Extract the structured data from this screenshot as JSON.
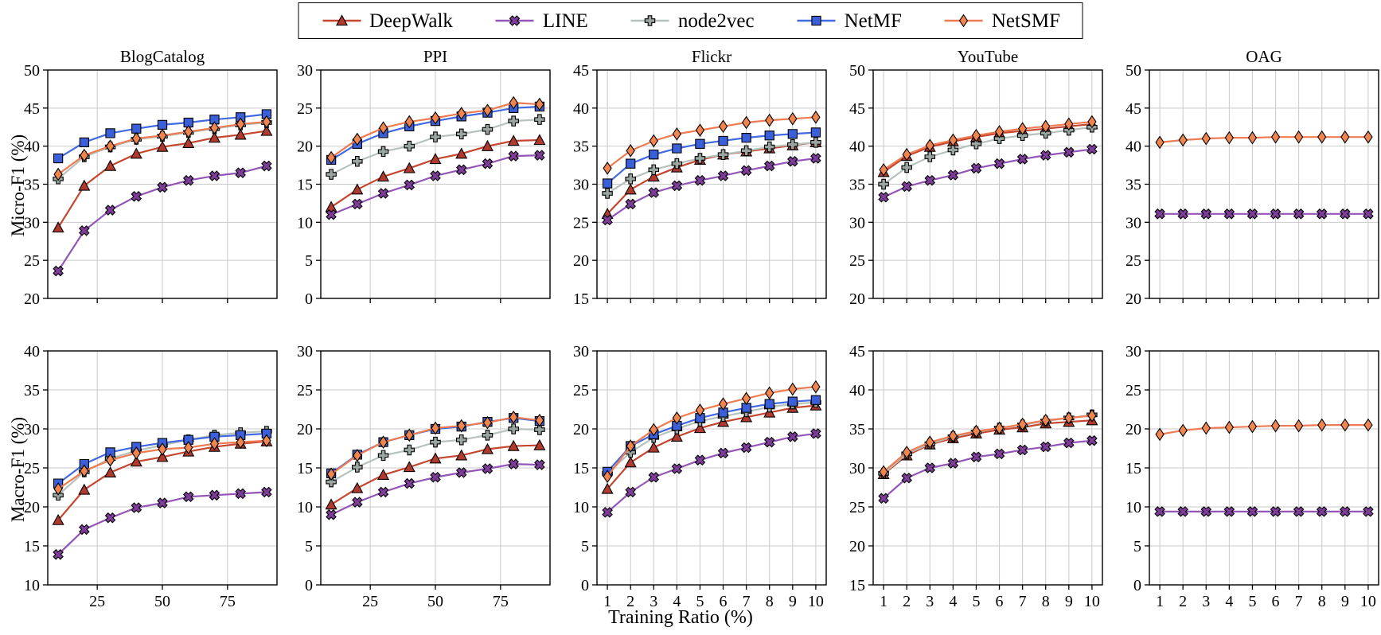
{
  "legend": {
    "items": [
      {
        "method": "DeepWalk",
        "label": "DeepWalk"
      },
      {
        "method": "LINE",
        "label": "LINE"
      },
      {
        "method": "node2vec",
        "label": "node2vec"
      },
      {
        "method": "NetMF",
        "label": "NetMF"
      },
      {
        "method": "NetSMF",
        "label": "NetSMF"
      }
    ]
  },
  "methods": {
    "DeepWalk": {
      "marker": "triangle",
      "line_color": "#c5462f",
      "fill_color": "#b03a2e"
    },
    "LINE": {
      "marker": "xcross",
      "line_color": "#9455b8",
      "fill_color": "#7d3c98"
    },
    "node2vec": {
      "marker": "plus",
      "line_color": "#b7c2bd",
      "fill_color": "#9aa5a1"
    },
    "NetMF": {
      "marker": "square",
      "line_color": "#4169e1",
      "fill_color": "#3a5fd8"
    },
    "NetSMF": {
      "marker": "diamond",
      "line_color": "#ee7b51",
      "fill_color": "#f0854f"
    }
  },
  "axis": {
    "xlabel": "Training Ratio (%)",
    "ylabel_row1": "Micro-F1 (%)",
    "ylabel_row2": "Macro-F1 (%)"
  },
  "chart_data": [
    {
      "id": "blogcatalog-micro",
      "type": "line",
      "title": "BlogCatalog",
      "row": 0,
      "col": 0,
      "ylim": [
        20,
        50
      ],
      "ytick_step": 5,
      "xlim": [
        6,
        94
      ],
      "xticks": [
        25,
        50,
        75
      ],
      "show_xtick_labels": false,
      "x": [
        10,
        20,
        30,
        40,
        50,
        60,
        70,
        80,
        90
      ],
      "series": [
        {
          "name": "DeepWalk",
          "values": [
            29.3,
            34.8,
            37.4,
            39.0,
            39.9,
            40.4,
            41.1,
            41.5,
            42.0
          ]
        },
        {
          "name": "LINE",
          "values": [
            23.6,
            28.9,
            31.6,
            33.4,
            34.6,
            35.5,
            36.1,
            36.5,
            37.4
          ]
        },
        {
          "name": "node2vec",
          "values": [
            35.7,
            38.6,
            39.9,
            40.9,
            41.3,
            41.8,
            42.3,
            42.8,
            43.1
          ]
        },
        {
          "name": "NetMF",
          "values": [
            38.4,
            40.5,
            41.7,
            42.3,
            42.8,
            43.1,
            43.5,
            43.8,
            44.2
          ]
        },
        {
          "name": "NetSMF",
          "values": [
            36.3,
            38.8,
            40.0,
            41.0,
            41.4,
            41.9,
            42.4,
            42.9,
            43.2
          ]
        }
      ]
    },
    {
      "id": "ppi-micro",
      "type": "line",
      "title": "PPI",
      "row": 0,
      "col": 1,
      "ylim": [
        0,
        30
      ],
      "ytick_step": 5,
      "xlim": [
        6,
        94
      ],
      "xticks": [
        25,
        50,
        75
      ],
      "show_xtick_labels": false,
      "x": [
        10,
        20,
        30,
        40,
        50,
        60,
        70,
        80,
        90
      ],
      "series": [
        {
          "name": "DeepWalk",
          "values": [
            12.0,
            14.3,
            16.0,
            17.1,
            18.3,
            19.0,
            20.0,
            20.7,
            20.8
          ]
        },
        {
          "name": "LINE",
          "values": [
            11.0,
            12.4,
            13.8,
            14.9,
            16.1,
            16.9,
            17.7,
            18.7,
            18.8
          ]
        },
        {
          "name": "node2vec",
          "values": [
            16.3,
            18.0,
            19.3,
            20.0,
            21.2,
            21.6,
            22.2,
            23.3,
            23.5
          ]
        },
        {
          "name": "NetMF",
          "values": [
            18.2,
            20.3,
            21.7,
            22.6,
            23.3,
            23.9,
            24.4,
            25.0,
            25.2
          ]
        },
        {
          "name": "NetSMF",
          "values": [
            18.5,
            20.9,
            22.4,
            23.2,
            23.7,
            24.3,
            24.7,
            25.7,
            25.5
          ]
        }
      ]
    },
    {
      "id": "flickr-micro",
      "type": "line",
      "title": "Flickr",
      "row": 0,
      "col": 2,
      "ylim": [
        15,
        45
      ],
      "ytick_step": 5,
      "xlim": [
        0.55,
        10.45
      ],
      "xticks": [
        1,
        2,
        3,
        4,
        5,
        6,
        7,
        8,
        9,
        10
      ],
      "show_xtick_labels": false,
      "x": [
        1,
        2,
        3,
        4,
        5,
        6,
        7,
        8,
        9,
        10
      ],
      "series": [
        {
          "name": "DeepWalk",
          "values": [
            26.1,
            29.3,
            31.0,
            32.2,
            33.2,
            33.9,
            34.3,
            34.7,
            35.1,
            35.5
          ]
        },
        {
          "name": "LINE",
          "values": [
            25.3,
            27.4,
            28.9,
            29.8,
            30.5,
            31.1,
            31.8,
            32.4,
            33.0,
            33.4
          ]
        },
        {
          "name": "node2vec",
          "values": [
            28.8,
            30.7,
            31.9,
            32.7,
            33.4,
            33.9,
            34.4,
            34.9,
            35.2,
            35.5
          ]
        },
        {
          "name": "NetMF",
          "values": [
            30.1,
            32.7,
            33.9,
            34.7,
            35.3,
            35.7,
            36.1,
            36.4,
            36.6,
            36.8
          ]
        },
        {
          "name": "NetSMF",
          "values": [
            32.1,
            34.4,
            35.7,
            36.6,
            37.1,
            37.6,
            38.1,
            38.4,
            38.6,
            38.8
          ]
        }
      ]
    },
    {
      "id": "youtube-micro",
      "type": "line",
      "title": "YouTube",
      "row": 0,
      "col": 3,
      "ylim": [
        20,
        50
      ],
      "ytick_step": 5,
      "xlim": [
        0.55,
        10.45
      ],
      "xticks": [
        1,
        2,
        3,
        4,
        5,
        6,
        7,
        8,
        9,
        10
      ],
      "show_xtick_labels": false,
      "x": [
        1,
        2,
        3,
        4,
        5,
        6,
        7,
        8,
        9,
        10
      ],
      "series": [
        {
          "name": "DeepWalk",
          "values": [
            36.6,
            38.7,
            39.9,
            40.6,
            41.2,
            41.7,
            42.0,
            42.3,
            42.6,
            42.9
          ]
        },
        {
          "name": "LINE",
          "values": [
            33.3,
            34.7,
            35.5,
            36.2,
            37.1,
            37.7,
            38.3,
            38.8,
            39.2,
            39.6
          ]
        },
        {
          "name": "node2vec",
          "values": [
            35.0,
            37.2,
            38.6,
            39.5,
            40.3,
            41.0,
            41.4,
            41.7,
            42.1,
            42.5
          ]
        },
        {
          "name": "NetSMF",
          "values": [
            36.9,
            38.9,
            40.1,
            40.8,
            41.4,
            41.9,
            42.3,
            42.6,
            42.9,
            43.2
          ]
        }
      ]
    },
    {
      "id": "oag-micro",
      "type": "line",
      "title": "OAG",
      "row": 0,
      "col": 4,
      "ylim": [
        20,
        50
      ],
      "ytick_step": 5,
      "xlim": [
        0.55,
        10.45
      ],
      "xticks": [
        1,
        2,
        3,
        4,
        5,
        6,
        7,
        8,
        9,
        10
      ],
      "show_xtick_labels": false,
      "x": [
        1,
        2,
        3,
        4,
        5,
        6,
        7,
        8,
        9,
        10
      ],
      "series": [
        {
          "name": "LINE",
          "values": [
            31.1,
            31.1,
            31.1,
            31.1,
            31.1,
            31.1,
            31.1,
            31.1,
            31.1,
            31.1
          ]
        },
        {
          "name": "NetSMF",
          "values": [
            40.5,
            40.8,
            41.0,
            41.1,
            41.1,
            41.2,
            41.2,
            41.2,
            41.2,
            41.2
          ]
        }
      ]
    },
    {
      "id": "blogcatalog-macro",
      "type": "line",
      "title": "",
      "row": 1,
      "col": 0,
      "ylim": [
        10,
        40
      ],
      "ytick_step": 5,
      "xlim": [
        6,
        94
      ],
      "xticks": [
        25,
        50,
        75
      ],
      "show_xtick_labels": true,
      "x": [
        10,
        20,
        30,
        40,
        50,
        60,
        70,
        80,
        90
      ],
      "series": [
        {
          "name": "DeepWalk",
          "values": [
            18.3,
            22.2,
            24.4,
            25.8,
            26.4,
            27.1,
            27.7,
            28.1,
            28.4
          ]
        },
        {
          "name": "LINE",
          "values": [
            13.9,
            17.1,
            18.6,
            19.9,
            20.5,
            21.3,
            21.5,
            21.7,
            21.9
          ]
        },
        {
          "name": "node2vec",
          "values": [
            21.5,
            24.5,
            26.2,
            27.2,
            27.9,
            28.6,
            29.2,
            29.5,
            29.7
          ]
        },
        {
          "name": "NetMF",
          "values": [
            23.0,
            25.5,
            27.0,
            27.7,
            28.2,
            28.6,
            29.0,
            29.2,
            29.4
          ]
        },
        {
          "name": "NetSMF",
          "values": [
            22.3,
            24.6,
            26.0,
            26.9,
            27.4,
            27.6,
            28.1,
            28.3,
            28.5
          ]
        }
      ]
    },
    {
      "id": "ppi-macro",
      "type": "line",
      "title": "",
      "row": 1,
      "col": 1,
      "ylim": [
        0,
        30
      ],
      "ytick_step": 5,
      "xlim": [
        6,
        94
      ],
      "xticks": [
        25,
        50,
        75
      ],
      "show_xtick_labels": true,
      "x": [
        10,
        20,
        30,
        40,
        50,
        60,
        70,
        80,
        90
      ],
      "series": [
        {
          "name": "DeepWalk",
          "values": [
            10.3,
            12.4,
            14.1,
            15.1,
            16.2,
            16.6,
            17.4,
            17.8,
            17.9
          ]
        },
        {
          "name": "LINE",
          "values": [
            9.0,
            10.6,
            11.9,
            13.0,
            13.8,
            14.4,
            14.9,
            15.5,
            15.4
          ]
        },
        {
          "name": "node2vec",
          "values": [
            13.2,
            15.1,
            16.6,
            17.3,
            18.3,
            18.6,
            19.2,
            20.0,
            19.9
          ]
        },
        {
          "name": "NetMF",
          "values": [
            14.3,
            16.7,
            18.3,
            19.2,
            20.0,
            20.3,
            20.9,
            21.4,
            21.0
          ]
        },
        {
          "name": "NetSMF",
          "values": [
            14.2,
            16.6,
            18.3,
            19.2,
            20.1,
            20.4,
            20.8,
            21.5,
            21.1
          ]
        }
      ]
    },
    {
      "id": "flickr-macro",
      "type": "line",
      "title": "",
      "row": 1,
      "col": 2,
      "ylim": [
        0,
        30
      ],
      "ytick_step": 5,
      "xlim": [
        0.55,
        10.45
      ],
      "xticks": [
        1,
        2,
        3,
        4,
        5,
        6,
        7,
        8,
        9,
        10
      ],
      "show_xtick_labels": true,
      "x": [
        1,
        2,
        3,
        4,
        5,
        6,
        7,
        8,
        9,
        10
      ],
      "series": [
        {
          "name": "DeepWalk",
          "values": [
            12.3,
            15.7,
            17.6,
            19.0,
            20.1,
            20.9,
            21.5,
            22.1,
            22.7,
            23.0
          ]
        },
        {
          "name": "LINE",
          "values": [
            9.3,
            11.9,
            13.8,
            14.9,
            16.0,
            16.9,
            17.6,
            18.3,
            19.0,
            19.4
          ]
        },
        {
          "name": "node2vec",
          "values": [
            14.3,
            17.0,
            18.9,
            20.0,
            21.0,
            21.6,
            22.2,
            22.8,
            23.2,
            23.4
          ]
        },
        {
          "name": "NetMF",
          "values": [
            14.5,
            17.8,
            19.3,
            20.4,
            21.4,
            22.1,
            22.7,
            23.2,
            23.5,
            23.7
          ]
        },
        {
          "name": "NetSMF",
          "values": [
            13.9,
            17.8,
            19.9,
            21.4,
            22.4,
            23.2,
            23.9,
            24.6,
            25.1,
            25.4
          ]
        }
      ]
    },
    {
      "id": "youtube-macro",
      "type": "line",
      "title": "",
      "row": 1,
      "col": 3,
      "ylim": [
        15,
        45
      ],
      "ytick_step": 5,
      "xlim": [
        0.55,
        10.45
      ],
      "xticks": [
        1,
        2,
        3,
        4,
        5,
        6,
        7,
        8,
        9,
        10
      ],
      "show_xtick_labels": true,
      "x": [
        1,
        2,
        3,
        4,
        5,
        6,
        7,
        8,
        9,
        10
      ],
      "series": [
        {
          "name": "DeepWalk",
          "values": [
            29.2,
            31.6,
            33.0,
            33.8,
            34.4,
            34.9,
            35.2,
            35.7,
            35.9,
            36.1
          ]
        },
        {
          "name": "LINE",
          "values": [
            26.1,
            28.7,
            30.0,
            30.6,
            31.4,
            31.8,
            32.3,
            32.7,
            33.2,
            33.5
          ]
        },
        {
          "name": "node2vec",
          "values": [
            29.3,
            31.8,
            33.1,
            34.0,
            34.6,
            35.1,
            35.5,
            36.0,
            36.4,
            36.8
          ]
        },
        {
          "name": "NetSMF",
          "values": [
            29.5,
            32.0,
            33.3,
            34.1,
            34.7,
            35.1,
            35.6,
            36.1,
            36.4,
            36.7
          ]
        }
      ]
    },
    {
      "id": "oag-macro",
      "type": "line",
      "title": "",
      "row": 1,
      "col": 4,
      "ylim": [
        0,
        30
      ],
      "ytick_step": 5,
      "xlim": [
        0.55,
        10.45
      ],
      "xticks": [
        1,
        2,
        3,
        4,
        5,
        6,
        7,
        8,
        9,
        10
      ],
      "show_xtick_labels": true,
      "x": [
        1,
        2,
        3,
        4,
        5,
        6,
        7,
        8,
        9,
        10
      ],
      "series": [
        {
          "name": "LINE",
          "values": [
            9.4,
            9.4,
            9.4,
            9.4,
            9.4,
            9.4,
            9.4,
            9.4,
            9.4,
            9.4
          ]
        },
        {
          "name": "NetSMF",
          "values": [
            19.3,
            19.8,
            20.1,
            20.2,
            20.3,
            20.4,
            20.4,
            20.5,
            20.5,
            20.5
          ]
        }
      ]
    }
  ]
}
